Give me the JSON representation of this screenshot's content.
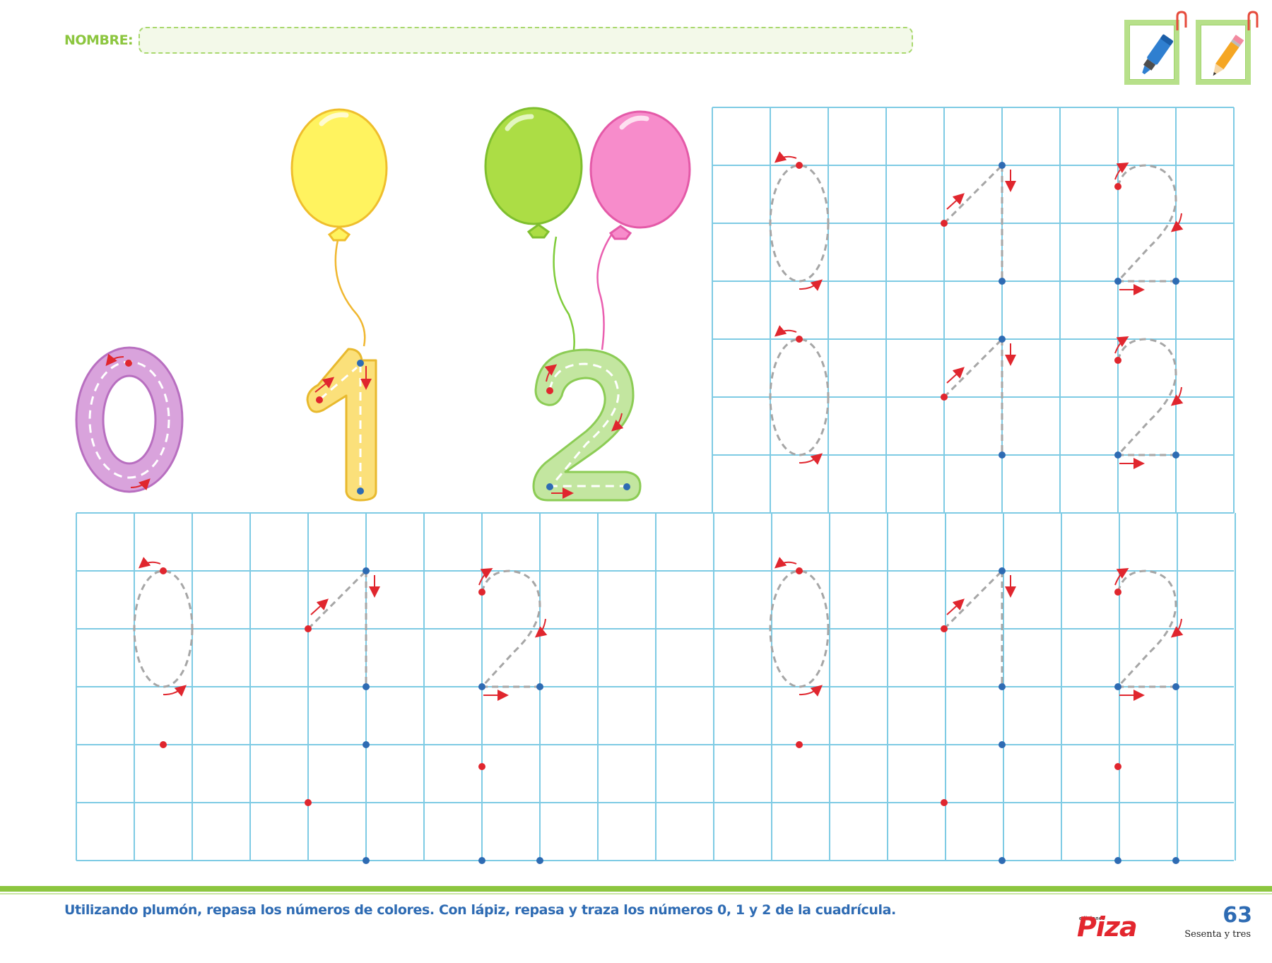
{
  "header": {
    "name_label": "NOMBRE:"
  },
  "tools": [
    {
      "icon": "marker-icon",
      "color": "#2f7fd0"
    },
    {
      "icon": "pencil-icon",
      "color": "#f5a623"
    }
  ],
  "demo_numbers": [
    {
      "digit": "0",
      "fill": "#d9a3dc",
      "stroke": "#b86fc0"
    },
    {
      "digit": "1",
      "fill": "#fbe07a",
      "stroke": "#e8b92e",
      "balloon": "#fff35f"
    },
    {
      "digit": "2",
      "fill": "#c3e6a0",
      "stroke": "#8ccc55",
      "balloons": [
        "#acdd45",
        "#f78ccb"
      ]
    }
  ],
  "grid_color": "#7ecbe4",
  "trace_sequence": [
    "0",
    "1",
    "2"
  ],
  "instruction": "Utilizando plumón, repasa los números de colores. Con lápiz, repasa y traza los números 0, 1 y 2 de la cuadrícula.",
  "footer": {
    "publisher_tag": "ediciones",
    "publisher": "Piza",
    "page_number": "63",
    "page_words": "Sesenta y tres"
  }
}
